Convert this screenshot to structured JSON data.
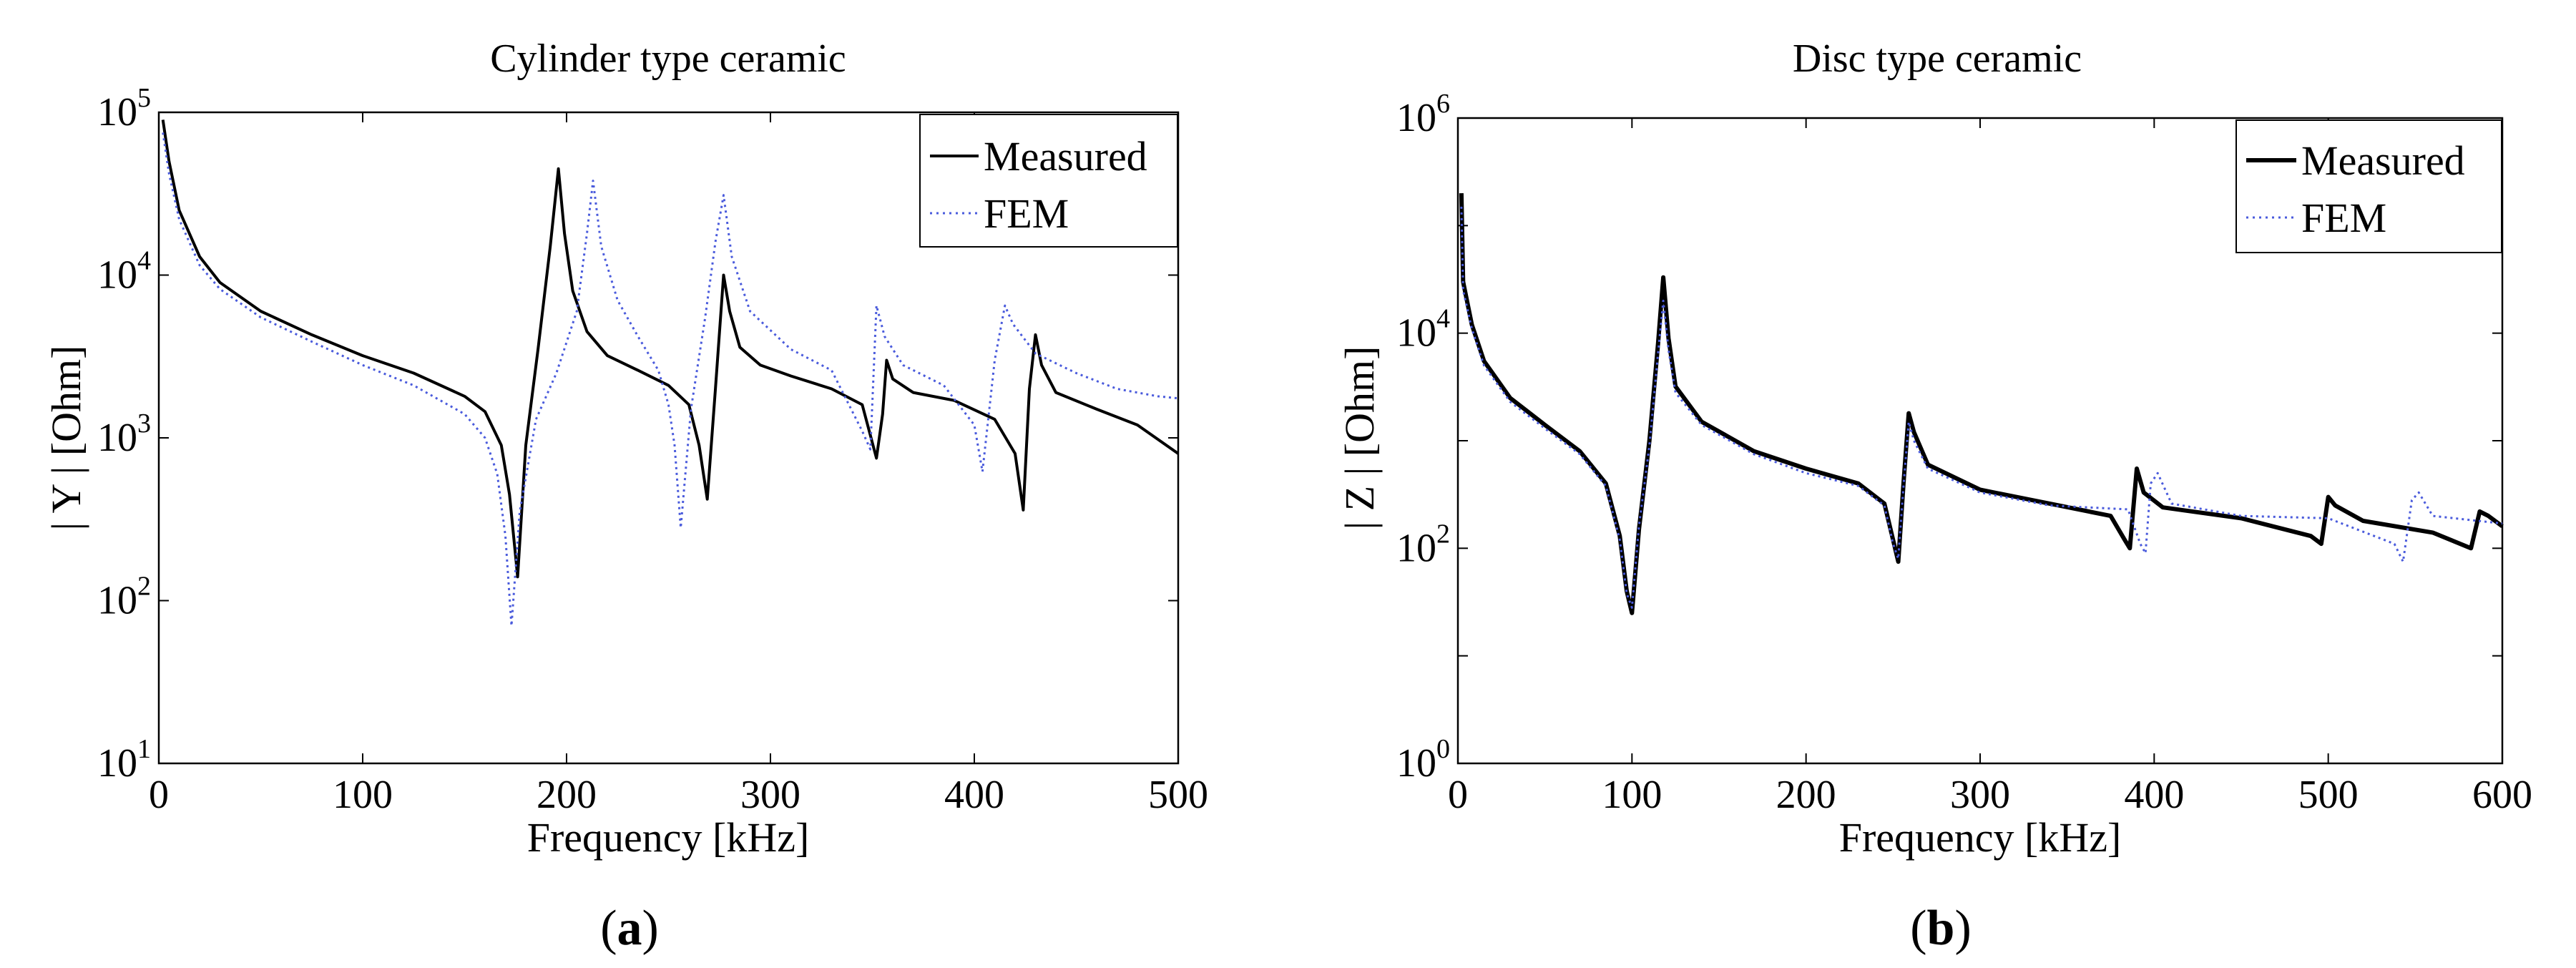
{
  "chart_data": [
    {
      "type": "line",
      "panel_label": "a",
      "title": "Cylinder type ceramic",
      "xlabel": "Frequency [kHz]",
      "ylabel": "| Y | [Ohm]",
      "xlim": [
        0,
        500
      ],
      "ylim": [
        10,
        100000
      ],
      "y_scale": "log",
      "x_ticks": [
        "0",
        "100",
        "200",
        "300",
        "400",
        "500"
      ],
      "y_ticks": [
        {
          "base": "10",
          "exp": "1"
        },
        {
          "base": "10",
          "exp": "2"
        },
        {
          "base": "10",
          "exp": "3"
        },
        {
          "base": "10",
          "exp": "4"
        },
        {
          "base": "10",
          "exp": "5"
        }
      ],
      "legend_position": "top-right",
      "series": [
        {
          "name": "Measured",
          "color": "#000000",
          "style": "solid",
          "points": [
            [
              2,
              90000
            ],
            [
              5,
              50000
            ],
            [
              10,
              25000
            ],
            [
              20,
              13000
            ],
            [
              30,
              9000
            ],
            [
              50,
              6000
            ],
            [
              75,
              4300
            ],
            [
              100,
              3200
            ],
            [
              125,
              2500
            ],
            [
              150,
              1800
            ],
            [
              160,
              1450
            ],
            [
              168,
              900
            ],
            [
              172,
              450
            ],
            [
              176,
              140
            ],
            [
              180,
              900
            ],
            [
              186,
              3500
            ],
            [
              192,
              15000
            ],
            [
              196,
              45000
            ],
            [
              199,
              18000
            ],
            [
              203,
              8000
            ],
            [
              210,
              4500
            ],
            [
              220,
              3200
            ],
            [
              235,
              2600
            ],
            [
              250,
              2100
            ],
            [
              260,
              1600
            ],
            [
              265,
              900
            ],
            [
              269,
              420
            ],
            [
              273,
              2000
            ],
            [
              277,
              10000
            ],
            [
              280,
              6000
            ],
            [
              285,
              3600
            ],
            [
              295,
              2800
            ],
            [
              310,
              2400
            ],
            [
              330,
              2000
            ],
            [
              345,
              1600
            ],
            [
              352,
              750
            ],
            [
              355,
              1400
            ],
            [
              357,
              3000
            ],
            [
              360,
              2300
            ],
            [
              370,
              1900
            ],
            [
              390,
              1700
            ],
            [
              410,
              1300
            ],
            [
              420,
              800
            ],
            [
              424,
              360
            ],
            [
              427,
              2000
            ],
            [
              430,
              4300
            ],
            [
              433,
              2800
            ],
            [
              440,
              1900
            ],
            [
              460,
              1500
            ],
            [
              480,
              1200
            ],
            [
              500,
              800
            ]
          ]
        },
        {
          "name": "FEM",
          "color": "#4a5bdc",
          "style": "dotted",
          "points": [
            [
              2,
              75000
            ],
            [
              5,
              42000
            ],
            [
              10,
              22000
            ],
            [
              20,
              11500
            ],
            [
              30,
              8200
            ],
            [
              50,
              5500
            ],
            [
              75,
              3900
            ],
            [
              100,
              2800
            ],
            [
              125,
              2100
            ],
            [
              150,
              1400
            ],
            [
              160,
              1000
            ],
            [
              166,
              600
            ],
            [
              170,
              250
            ],
            [
              173,
              70
            ],
            [
              177,
              350
            ],
            [
              185,
              1300
            ],
            [
              195,
              2500
            ],
            [
              205,
              6000
            ],
            [
              210,
              18000
            ],
            [
              213,
              38000
            ],
            [
              217,
              15000
            ],
            [
              225,
              7000
            ],
            [
              235,
              4200
            ],
            [
              245,
              2600
            ],
            [
              250,
              1600
            ],
            [
              253,
              900
            ],
            [
              256,
              280
            ],
            [
              261,
              1500
            ],
            [
              268,
              5500
            ],
            [
              273,
              16000
            ],
            [
              277,
              31000
            ],
            [
              281,
              13000
            ],
            [
              290,
              6000
            ],
            [
              310,
              3500
            ],
            [
              330,
              2600
            ],
            [
              345,
              1100
            ],
            [
              349,
              850
            ],
            [
              352,
              6500
            ],
            [
              356,
              4200
            ],
            [
              365,
              2800
            ],
            [
              385,
              2100
            ],
            [
              400,
              1200
            ],
            [
              404,
              620
            ],
            [
              410,
              3000
            ],
            [
              415,
              6500
            ],
            [
              419,
              5000
            ],
            [
              430,
              3300
            ],
            [
              450,
              2500
            ],
            [
              470,
              2000
            ],
            [
              490,
              1800
            ],
            [
              500,
              1750
            ]
          ]
        }
      ]
    },
    {
      "type": "line",
      "panel_label": "b",
      "title": "Disc type ceramic",
      "xlabel": "Frequency [kHz]",
      "ylabel": "| Z | [Ohm]",
      "xlim": [
        0,
        600
      ],
      "ylim": [
        1,
        1000000
      ],
      "y_scale": "log",
      "x_ticks": [
        "0",
        "100",
        "200",
        "300",
        "400",
        "500",
        "600"
      ],
      "y_ticks": [
        {
          "base": "10",
          "exp": "0"
        },
        {
          "base": "10",
          "exp": "2"
        },
        {
          "base": "10",
          "exp": "4"
        },
        {
          "base": "10",
          "exp": "6"
        }
      ],
      "legend_position": "top-right",
      "series": [
        {
          "name": "Measured",
          "color": "#000000",
          "style": "solid",
          "points": [
            [
              2,
              200000
            ],
            [
              3,
              30000
            ],
            [
              8,
              12000
            ],
            [
              15,
              5500
            ],
            [
              30,
              2500
            ],
            [
              50,
              1400
            ],
            [
              70,
              800
            ],
            [
              85,
              400
            ],
            [
              93,
              130
            ],
            [
              97,
              40
            ],
            [
              100,
              25
            ],
            [
              104,
              150
            ],
            [
              110,
              1000
            ],
            [
              115,
              8000
            ],
            [
              118,
              33000
            ],
            [
              121,
              9000
            ],
            [
              125,
              3200
            ],
            [
              140,
              1500
            ],
            [
              170,
              800
            ],
            [
              200,
              550
            ],
            [
              230,
              400
            ],
            [
              245,
              260
            ],
            [
              250,
              120
            ],
            [
              253,
              75
            ],
            [
              256,
              400
            ],
            [
              259,
              1800
            ],
            [
              262,
              1200
            ],
            [
              270,
              600
            ],
            [
              300,
              350
            ],
            [
              340,
              260
            ],
            [
              375,
              200
            ],
            [
              383,
              120
            ],
            [
              386,
              100
            ],
            [
              390,
              550
            ],
            [
              394,
              330
            ],
            [
              405,
              240
            ],
            [
              450,
              190
            ],
            [
              490,
              130
            ],
            [
              496,
              110
            ],
            [
              500,
              300
            ],
            [
              504,
              250
            ],
            [
              520,
              180
            ],
            [
              560,
              140
            ],
            [
              582,
              100
            ],
            [
              587,
              220
            ],
            [
              592,
              200
            ],
            [
              600,
              160
            ]
          ]
        },
        {
          "name": "FEM",
          "color": "#4a5bdc",
          "style": "dotted",
          "points": [
            [
              2,
              150000
            ],
            [
              3,
              25000
            ],
            [
              8,
              11000
            ],
            [
              15,
              5000
            ],
            [
              30,
              2300
            ],
            [
              50,
              1300
            ],
            [
              70,
              750
            ],
            [
              85,
              380
            ],
            [
              93,
              120
            ],
            [
              97,
              38
            ],
            [
              100,
              28
            ],
            [
              104,
              160
            ],
            [
              110,
              900
            ],
            [
              115,
              6500
            ],
            [
              118,
              20000
            ],
            [
              121,
              7000
            ],
            [
              125,
              2800
            ],
            [
              140,
              1400
            ],
            [
              170,
              750
            ],
            [
              200,
              500
            ],
            [
              230,
              380
            ],
            [
              245,
              250
            ],
            [
              250,
              110
            ],
            [
              253,
              80
            ],
            [
              256,
              380
            ],
            [
              259,
              1500
            ],
            [
              262,
              1000
            ],
            [
              270,
              550
            ],
            [
              300,
              330
            ],
            [
              340,
              250
            ],
            [
              385,
              230
            ],
            [
              392,
              110
            ],
            [
              395,
              90
            ],
            [
              398,
              400
            ],
            [
              402,
              500
            ],
            [
              410,
              260
            ],
            [
              450,
              200
            ],
            [
              500,
              190
            ],
            [
              538,
              110
            ],
            [
              543,
              75
            ],
            [
              548,
              280
            ],
            [
              552,
              330
            ],
            [
              560,
              200
            ],
            [
              600,
              170
            ]
          ]
        }
      ]
    }
  ],
  "legend_labels": {
    "measured": "Measured",
    "fem": "FEM"
  }
}
